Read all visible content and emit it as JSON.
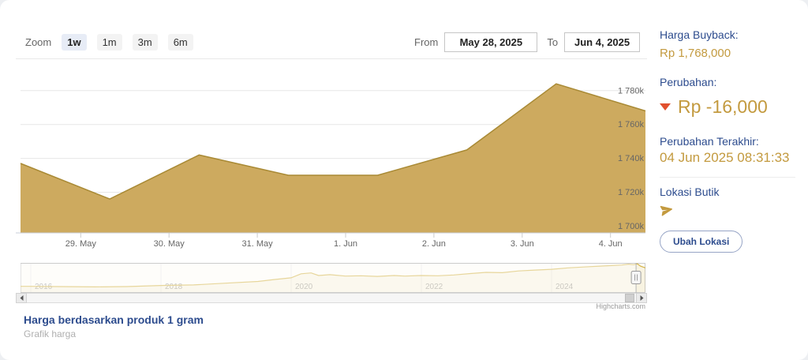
{
  "toolbar": {
    "zoom_label": "Zoom",
    "zoom_options": [
      {
        "label": "1w",
        "active": true
      },
      {
        "label": "1m",
        "active": false
      },
      {
        "label": "3m",
        "active": false
      },
      {
        "label": "6m",
        "active": false
      }
    ],
    "from_label": "From",
    "from_value": "May 28, 2025",
    "to_label": "To",
    "to_value": "Jun 4, 2025"
  },
  "chart_data": {
    "type": "area",
    "title": "",
    "x": [
      "28 May 2025",
      "29 May 2025",
      "30 May 2025",
      "31 May 2025",
      "1 Jun 2025",
      "2 Jun 2025",
      "3 Jun 2025",
      "4 Jun 2025"
    ],
    "values": [
      1737000,
      1716000,
      1742000,
      1730000,
      1730000,
      1745000,
      1784000,
      1768000
    ],
    "ylim": [
      1696000,
      1799000
    ],
    "ytick_values": [
      1780000,
      1760000,
      1740000,
      1720000,
      1700000
    ],
    "ytick_labels": [
      "1 780k",
      "1 760k",
      "1 740k",
      "1 720k",
      "1 700k"
    ],
    "xtick_labels": [
      "29. May",
      "30. May",
      "31. May",
      "1. Jun",
      "2. Jun",
      "3. Jun",
      "4. Jun"
    ],
    "grid": true,
    "legend": false,
    "series_fill": "#cdaa5f",
    "series_line": "#a98a35",
    "navigator": {
      "year_labels": [
        "2016",
        "2018",
        "2020",
        "2022",
        "2024"
      ],
      "year_fracs": [
        0.0164,
        0.2247,
        0.4331,
        0.6414,
        0.8497
      ],
      "handle_frac": 0.985,
      "line_color": "#d4b44a",
      "points": [
        [
          0,
          0.81
        ],
        [
          0.016,
          0.81
        ],
        [
          0.06,
          0.82
        ],
        [
          0.12,
          0.83
        ],
        [
          0.17,
          0.82
        ],
        [
          0.225,
          0.78
        ],
        [
          0.277,
          0.76
        ],
        [
          0.328,
          0.7
        ],
        [
          0.38,
          0.64
        ],
        [
          0.407,
          0.57
        ],
        [
          0.433,
          0.51
        ],
        [
          0.449,
          0.37
        ],
        [
          0.465,
          0.34
        ],
        [
          0.477,
          0.43
        ],
        [
          0.495,
          0.4
        ],
        [
          0.52,
          0.45
        ],
        [
          0.545,
          0.44
        ],
        [
          0.571,
          0.46
        ],
        [
          0.598,
          0.43
        ],
        [
          0.615,
          0.45
        ],
        [
          0.641,
          0.43
        ],
        [
          0.668,
          0.44
        ],
        [
          0.693,
          0.41
        ],
        [
          0.72,
          0.36
        ],
        [
          0.745,
          0.32
        ],
        [
          0.771,
          0.33
        ],
        [
          0.797,
          0.27
        ],
        [
          0.823,
          0.24
        ],
        [
          0.85,
          0.21
        ],
        [
          0.876,
          0.16
        ],
        [
          0.901,
          0.13
        ],
        [
          0.927,
          0.1
        ],
        [
          0.946,
          0.08
        ],
        [
          0.962,
          0.06
        ],
        [
          0.973,
          0.03
        ],
        [
          0.981,
          0.05
        ],
        [
          0.987,
          0.02
        ],
        [
          0.992,
          0.1
        ],
        [
          1,
          0.16
        ]
      ]
    }
  },
  "credits": "Highcharts.com",
  "footer": {
    "title": "Harga berdasarkan produk 1 gram",
    "subtitle": "Grafik harga"
  },
  "sidebar": {
    "buyback_label": "Harga Buyback:",
    "buyback_value": "Rp 1,768,000",
    "change_label": "Perubahan:",
    "change_value": "Rp -16,000",
    "change_direction": "down",
    "triangle_color": "#e1502e",
    "gold_color": "#c39a3f",
    "last_change_label": "Perubahan Terakhir:",
    "last_change_value": "04 Jun 2025 08:31:33",
    "location_label": "Lokasi Butik",
    "location_button": "Ubah Lokasi"
  }
}
